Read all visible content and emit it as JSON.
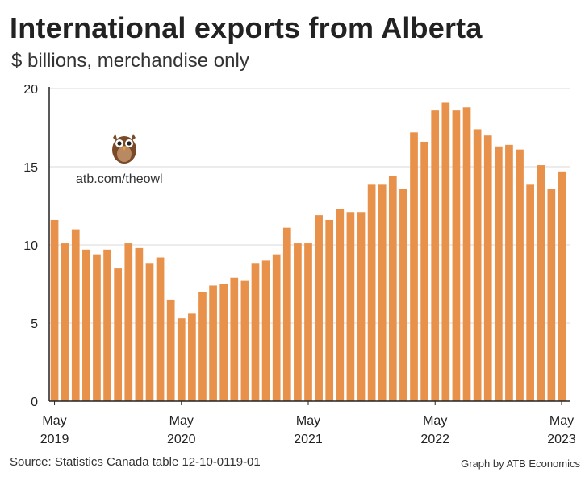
{
  "title": "International exports from Alberta",
  "subtitle": "$ billions, merchandise only",
  "source": "Source: Statistics Canada table 12-10-0119-01",
  "credit": "Graph by ATB Economics",
  "owl_label": "atb.com/theowl",
  "colors": {
    "bar": "#E8914A",
    "grid": "#d9d9d9",
    "axis": "#222222"
  },
  "chart_data": {
    "type": "bar",
    "title": "International exports from Alberta",
    "subtitle": "$ billions, merchandise only",
    "ylim": [
      0,
      20
    ],
    "yticks": [
      0,
      5,
      10,
      15,
      20
    ],
    "xtick_labels": [
      {
        "index": 0,
        "line1": "May",
        "line2": "2019"
      },
      {
        "index": 12,
        "line1": "May",
        "line2": "2020"
      },
      {
        "index": 24,
        "line1": "May",
        "line2": "2021"
      },
      {
        "index": 36,
        "line1": "May",
        "line2": "2022"
      },
      {
        "index": 48,
        "line1": "May",
        "line2": "2023"
      }
    ],
    "grid": true,
    "categories": [
      "2019-05",
      "2019-06",
      "2019-07",
      "2019-08",
      "2019-09",
      "2019-10",
      "2019-11",
      "2019-12",
      "2020-01",
      "2020-02",
      "2020-03",
      "2020-04",
      "2020-05",
      "2020-06",
      "2020-07",
      "2020-08",
      "2020-09",
      "2020-10",
      "2020-11",
      "2020-12",
      "2021-01",
      "2021-02",
      "2021-03",
      "2021-04",
      "2021-05",
      "2021-06",
      "2021-07",
      "2021-08",
      "2021-09",
      "2021-10",
      "2021-11",
      "2021-12",
      "2022-01",
      "2022-02",
      "2022-03",
      "2022-04",
      "2022-05",
      "2022-06",
      "2022-07",
      "2022-08",
      "2022-09",
      "2022-10",
      "2022-11",
      "2022-12",
      "2023-01",
      "2023-02",
      "2023-03",
      "2023-04",
      "2023-05"
    ],
    "values": [
      11.6,
      10.1,
      11.0,
      9.7,
      9.4,
      9.7,
      8.5,
      10.1,
      9.8,
      8.8,
      9.2,
      6.5,
      5.3,
      5.6,
      7.0,
      7.4,
      7.5,
      7.9,
      7.7,
      8.8,
      9.0,
      9.4,
      11.1,
      10.1,
      10.1,
      11.9,
      11.6,
      12.3,
      12.1,
      12.1,
      13.9,
      13.9,
      14.4,
      13.6,
      17.2,
      16.6,
      18.6,
      19.1,
      18.6,
      18.8,
      17.4,
      17.0,
      16.3,
      16.4,
      16.1,
      13.9,
      15.1,
      13.6,
      14.7
    ]
  }
}
